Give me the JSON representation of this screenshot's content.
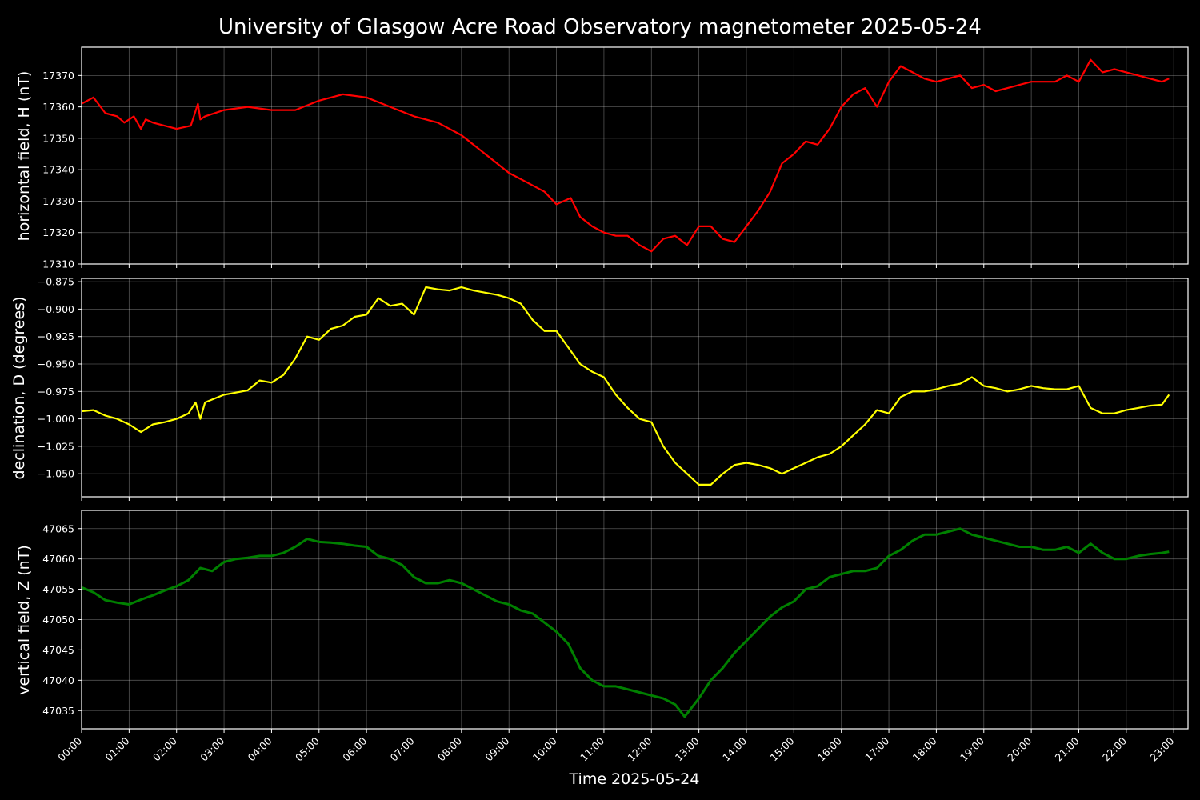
{
  "chart_data": [
    {
      "type": "line",
      "title": "University of Glasgow Acre Road Observatory magnetometer 2025-05-24",
      "ylabel": "horizontal field, H (nT)",
      "color": "#ff0000",
      "ylim": [
        17310,
        17379
      ],
      "yticks": [
        "17310",
        "17320",
        "17330",
        "17340",
        "17350",
        "17360",
        "17370"
      ],
      "xlim": [
        0,
        23.3
      ],
      "series": [
        {
          "x": [
            0.0,
            0.25,
            0.5,
            0.75,
            0.9,
            1.1,
            1.25,
            1.35,
            1.5,
            1.75,
            2.0,
            2.3,
            2.45,
            2.5,
            2.6,
            3.0,
            3.5,
            4.0,
            4.5,
            5.0,
            5.5,
            6.0,
            6.5,
            7.0,
            7.5,
            8.0,
            8.5,
            9.0,
            9.5,
            9.75,
            10.0,
            10.3,
            10.5,
            10.75,
            11.0,
            11.25,
            11.5,
            11.75,
            12.0,
            12.25,
            12.5,
            12.75,
            13.0,
            13.25,
            13.5,
            13.75,
            14.0,
            14.25,
            14.5,
            14.75,
            15.0,
            15.25,
            15.5,
            15.75,
            16.0,
            16.25,
            16.5,
            16.75,
            17.0,
            17.25,
            17.5,
            17.75,
            18.0,
            18.25,
            18.5,
            18.75,
            19.0,
            19.25,
            19.5,
            19.75,
            20.0,
            20.25,
            20.5,
            20.75,
            21.0,
            21.25,
            21.5,
            21.75,
            22.0,
            22.25,
            22.5,
            22.75,
            22.9
          ],
          "y": [
            17361,
            17363,
            17358,
            17357,
            17355,
            17357,
            17353,
            17356,
            17355,
            17354,
            17353,
            17354,
            17361,
            17356,
            17357,
            17359,
            17360,
            17359,
            17359,
            17362,
            17364,
            17363,
            17360,
            17357,
            17355,
            17351,
            17345,
            17339,
            17335,
            17333,
            17329,
            17331,
            17325,
            17322,
            17320,
            17319,
            17319,
            17316,
            17314,
            17318,
            17319,
            17316,
            17322,
            17322,
            17318,
            17317,
            17322,
            17327,
            17333,
            17342,
            17345,
            17349,
            17348,
            17353,
            17360,
            17364,
            17366,
            17360,
            17368,
            17373,
            17371,
            17369,
            17368,
            17369,
            17370,
            17366,
            17367,
            17365,
            17366,
            17367,
            17368,
            17368,
            17368,
            17370,
            17368,
            17375,
            17371,
            17372,
            17371,
            17370,
            17369,
            17368,
            17369
          ]
        }
      ]
    },
    {
      "type": "line",
      "ylabel": "declination, D (degrees)",
      "color": "#ffff00",
      "ylim": [
        -1.071,
        -0.872
      ],
      "yticks": [
        "−1.050",
        "−1.025",
        "−1.000",
        "−0.975",
        "−0.950",
        "−0.925",
        "−0.900",
        "−0.875"
      ],
      "xlim": [
        0,
        23.3
      ],
      "series": [
        {
          "x": [
            0.0,
            0.25,
            0.5,
            0.75,
            1.0,
            1.25,
            1.5,
            1.75,
            2.0,
            2.25,
            2.4,
            2.5,
            2.6,
            3.0,
            3.5,
            3.75,
            4.0,
            4.25,
            4.5,
            4.75,
            5.0,
            5.25,
            5.5,
            5.75,
            6.0,
            6.25,
            6.5,
            6.75,
            7.0,
            7.25,
            7.5,
            7.75,
            8.0,
            8.25,
            8.5,
            8.75,
            9.0,
            9.25,
            9.5,
            9.75,
            10.0,
            10.25,
            10.5,
            10.75,
            11.0,
            11.25,
            11.5,
            11.75,
            12.0,
            12.25,
            12.5,
            12.75,
            13.0,
            13.25,
            13.5,
            13.75,
            14.0,
            14.25,
            14.5,
            14.75,
            15.0,
            15.25,
            15.5,
            15.75,
            16.0,
            16.25,
            16.5,
            16.75,
            17.0,
            17.25,
            17.5,
            17.75,
            18.0,
            18.25,
            18.5,
            18.75,
            19.0,
            19.25,
            19.5,
            19.75,
            20.0,
            20.25,
            20.5,
            20.75,
            21.0,
            21.25,
            21.5,
            21.75,
            22.0,
            22.25,
            22.5,
            22.75,
            22.9
          ],
          "y": [
            -0.993,
            -0.992,
            -0.997,
            -1.0,
            -1.005,
            -1.012,
            -1.005,
            -1.003,
            -1.0,
            -0.995,
            -0.985,
            -1.0,
            -0.985,
            -0.978,
            -0.974,
            -0.965,
            -0.967,
            -0.96,
            -0.945,
            -0.925,
            -0.928,
            -0.918,
            -0.915,
            -0.907,
            -0.905,
            -0.89,
            -0.897,
            -0.895,
            -0.905,
            -0.88,
            -0.882,
            -0.883,
            -0.88,
            -0.883,
            -0.885,
            -0.887,
            -0.89,
            -0.895,
            -0.91,
            -0.92,
            -0.92,
            -0.935,
            -0.95,
            -0.957,
            -0.962,
            -0.978,
            -0.99,
            -1.0,
            -1.003,
            -1.025,
            -1.04,
            -1.05,
            -1.06,
            -1.06,
            -1.05,
            -1.042,
            -1.04,
            -1.042,
            -1.045,
            -1.05,
            -1.045,
            -1.04,
            -1.035,
            -1.032,
            -1.025,
            -1.015,
            -1.005,
            -0.992,
            -0.995,
            -0.98,
            -0.975,
            -0.975,
            -0.973,
            -0.97,
            -0.968,
            -0.962,
            -0.97,
            -0.972,
            -0.975,
            -0.973,
            -0.97,
            -0.972,
            -0.973,
            -0.973,
            -0.97,
            -0.99,
            -0.995,
            -0.995,
            -0.992,
            -0.99,
            -0.988,
            -0.987,
            -0.978
          ]
        }
      ]
    },
    {
      "type": "line",
      "ylabel": "vertical field, Z (nT)",
      "color": "#008000",
      "ylim": [
        47032,
        47068
      ],
      "yticks": [
        "47035",
        "47040",
        "47045",
        "47050",
        "47055",
        "47060",
        "47065"
      ],
      "xlim": [
        0,
        23.3
      ],
      "xlabel": "Time 2025-05-24",
      "xticks": [
        "00:00",
        "01:00",
        "02:00",
        "03:00",
        "04:00",
        "05:00",
        "06:00",
        "07:00",
        "08:00",
        "09:00",
        "10:00",
        "11:00",
        "12:00",
        "13:00",
        "14:00",
        "15:00",
        "16:00",
        "17:00",
        "18:00",
        "19:00",
        "20:00",
        "21:00",
        "22:00",
        "23:00"
      ],
      "series": [
        {
          "x": [
            0.0,
            0.25,
            0.5,
            0.75,
            1.0,
            1.25,
            1.5,
            1.75,
            2.0,
            2.25,
            2.5,
            2.75,
            3.0,
            3.25,
            3.5,
            3.75,
            4.0,
            4.25,
            4.5,
            4.75,
            5.0,
            5.25,
            5.5,
            5.75,
            6.0,
            6.25,
            6.5,
            6.75,
            7.0,
            7.25,
            7.5,
            7.75,
            8.0,
            8.25,
            8.5,
            8.75,
            9.0,
            9.25,
            9.5,
            9.75,
            10.0,
            10.25,
            10.5,
            10.75,
            11.0,
            11.25,
            11.5,
            11.75,
            12.0,
            12.25,
            12.5,
            12.7,
            13.0,
            13.25,
            13.5,
            13.75,
            14.0,
            14.25,
            14.5,
            14.75,
            15.0,
            15.25,
            15.5,
            15.75,
            16.0,
            16.25,
            16.5,
            16.75,
            17.0,
            17.25,
            17.5,
            17.75,
            18.0,
            18.25,
            18.5,
            18.75,
            19.0,
            19.25,
            19.5,
            19.75,
            20.0,
            20.25,
            20.5,
            20.75,
            21.0,
            21.25,
            21.5,
            21.75,
            22.0,
            22.25,
            22.5,
            22.75,
            22.9
          ],
          "y": [
            47055.3,
            47054.5,
            47053.2,
            47052.8,
            47052.5,
            47053.3,
            47054.0,
            47054.8,
            47055.5,
            47056.5,
            47058.5,
            47058.0,
            47059.5,
            47060.0,
            47060.2,
            47060.5,
            47060.5,
            47061.0,
            47062.0,
            47063.3,
            47062.8,
            47062.7,
            47062.5,
            47062.2,
            47062.0,
            47060.5,
            47060.0,
            47059.0,
            47057.0,
            47056.0,
            47056.0,
            47056.5,
            47056.0,
            47055.0,
            47054.0,
            47053.0,
            47052.5,
            47051.5,
            47051.0,
            47049.5,
            47048.0,
            47046.0,
            47042.0,
            47040.0,
            47039.0,
            47039.0,
            47038.5,
            47038.0,
            47037.5,
            47037.0,
            47036.0,
            47034.0,
            47037.0,
            47040.0,
            47042.0,
            47044.5,
            47046.5,
            47048.5,
            47050.5,
            47052.0,
            47053.0,
            47055.0,
            47055.5,
            47057.0,
            47057.5,
            47058.0,
            47058.0,
            47058.5,
            47060.5,
            47061.5,
            47063.0,
            47064.0,
            47064.0,
            47064.5,
            47065.0,
            47064.0,
            47063.5,
            47063.0,
            47062.5,
            47062.0,
            47062.0,
            47061.5,
            47061.5,
            47062.0,
            47061.0,
            47062.5,
            47061.0,
            47060.0,
            47060.0,
            47060.5,
            47060.8,
            47061.0,
            47061.2
          ]
        }
      ]
    }
  ]
}
